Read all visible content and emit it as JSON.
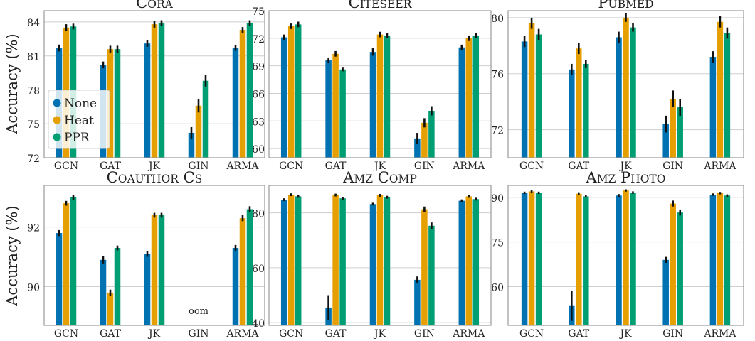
{
  "ylabel": "Accuracy (%)",
  "legend": {
    "entries": [
      {
        "label": "None",
        "color": "#0072B2"
      },
      {
        "label": "Heat",
        "color": "#E69F00"
      },
      {
        "label": "PPR",
        "color": "#009E73"
      }
    ]
  },
  "chart_data": [
    {
      "type": "bar",
      "title": "Cora",
      "categories": [
        "GCN",
        "GAT",
        "JK",
        "GIN",
        "ARMA"
      ],
      "ylim": [
        72,
        85
      ],
      "yticks": [
        72,
        75,
        78,
        81,
        84
      ],
      "series": [
        {
          "name": "None",
          "values": [
            81.7,
            80.2,
            82.1,
            74.2,
            81.7
          ],
          "errors": [
            0.3,
            0.3,
            0.3,
            0.5,
            0.25
          ]
        },
        {
          "name": "Heat",
          "values": [
            83.5,
            81.6,
            83.8,
            76.6,
            83.3
          ],
          "errors": [
            0.3,
            0.3,
            0.3,
            0.6,
            0.25
          ]
        },
        {
          "name": "PPR",
          "values": [
            83.6,
            81.6,
            83.9,
            78.8,
            83.9
          ],
          "errors": [
            0.25,
            0.3,
            0.25,
            0.5,
            0.25
          ]
        }
      ],
      "legend_placement": "left"
    },
    {
      "type": "bar",
      "title": "Citeseer",
      "categories": [
        "GCN",
        "GAT",
        "JK",
        "GIN",
        "ARMA"
      ],
      "ylim": [
        59,
        75
      ],
      "yticks": [
        60,
        63,
        66,
        69,
        72,
        75
      ],
      "series": [
        {
          "name": "None",
          "values": [
            72.1,
            69.6,
            70.5,
            61.1,
            71.0
          ],
          "errors": [
            0.3,
            0.3,
            0.4,
            0.6,
            0.3
          ]
        },
        {
          "name": "Heat",
          "values": [
            73.3,
            70.3,
            72.4,
            62.8,
            72.0
          ],
          "errors": [
            0.3,
            0.3,
            0.3,
            0.5,
            0.3
          ]
        },
        {
          "name": "PPR",
          "values": [
            73.5,
            68.6,
            72.3,
            64.1,
            72.3
          ],
          "errors": [
            0.3,
            0.2,
            0.3,
            0.5,
            0.3
          ]
        }
      ]
    },
    {
      "type": "bar",
      "title": "PubMed",
      "categories": [
        "GCN",
        "GAT",
        "JK",
        "GIN",
        "ARMA"
      ],
      "ylim": [
        70,
        80.5
      ],
      "yticks": [
        72,
        76,
        80
      ],
      "series": [
        {
          "name": "None",
          "values": [
            78.3,
            76.3,
            78.6,
            72.4,
            77.2
          ],
          "errors": [
            0.4,
            0.4,
            0.4,
            0.6,
            0.4
          ]
        },
        {
          "name": "Heat",
          "values": [
            79.6,
            77.8,
            80.0,
            74.2,
            79.7
          ],
          "errors": [
            0.4,
            0.4,
            0.3,
            0.6,
            0.4
          ]
        },
        {
          "name": "PPR",
          "values": [
            78.8,
            76.7,
            79.3,
            73.6,
            78.9
          ],
          "errors": [
            0.4,
            0.3,
            0.3,
            0.6,
            0.4
          ]
        }
      ]
    },
    {
      "type": "bar",
      "title": "Coauthor CS",
      "categories": [
        "GCN",
        "GAT",
        "JK",
        "GIN",
        "ARMA"
      ],
      "ylim": [
        88.7,
        93.4
      ],
      "yticks": [
        90,
        92
      ],
      "annotations": [
        {
          "category": "GIN",
          "text": "oom"
        }
      ],
      "series": [
        {
          "name": "None",
          "values": [
            91.8,
            90.9,
            91.1,
            null,
            91.3
          ],
          "errors": [
            0.1,
            0.12,
            0.1,
            null,
            0.1
          ]
        },
        {
          "name": "Heat",
          "values": [
            92.8,
            89.8,
            92.4,
            null,
            92.3
          ],
          "errors": [
            0.08,
            0.1,
            0.08,
            null,
            0.1
          ]
        },
        {
          "name": "PPR",
          "values": [
            93.0,
            91.3,
            92.4,
            null,
            92.6
          ],
          "errors": [
            0.08,
            0.08,
            0.08,
            null,
            0.1
          ]
        }
      ]
    },
    {
      "type": "bar",
      "title": "Amz Comp",
      "categories": [
        "GCN",
        "GAT",
        "JK",
        "GIN",
        "ARMA"
      ],
      "ylim": [
        39,
        90
      ],
      "yticks": [
        40,
        60,
        80
      ],
      "series": [
        {
          "name": "None",
          "values": [
            84.8,
            45.5,
            83.2,
            55.6,
            84.4
          ],
          "errors": [
            0.5,
            4.5,
            0.5,
            1.2,
            0.5
          ]
        },
        {
          "name": "Heat",
          "values": [
            86.6,
            86.5,
            86.4,
            81.3,
            86.0
          ],
          "errors": [
            0.5,
            0.5,
            0.5,
            1.0,
            0.5
          ]
        },
        {
          "name": "PPR",
          "values": [
            86.0,
            85.3,
            85.7,
            75.3,
            85.0
          ],
          "errors": [
            0.5,
            0.5,
            0.5,
            1.2,
            0.5
          ]
        }
      ]
    },
    {
      "type": "bar",
      "title": "Amz Photo",
      "categories": [
        "GCN",
        "GAT",
        "JK",
        "GIN",
        "ARMA"
      ],
      "ylim": [
        47,
        94
      ],
      "yticks": [
        60,
        75,
        90
      ],
      "series": [
        {
          "name": "None",
          "values": [
            91.5,
            53.5,
            90.6,
            69.0,
            90.9
          ],
          "errors": [
            0.4,
            5.0,
            0.5,
            1.0,
            0.4
          ]
        },
        {
          "name": "Heat",
          "values": [
            92.0,
            91.2,
            92.3,
            87.9,
            91.4
          ],
          "errors": [
            0.4,
            0.5,
            0.4,
            1.0,
            0.4
          ]
        },
        {
          "name": "PPR",
          "values": [
            91.5,
            90.3,
            91.6,
            84.9,
            90.6
          ],
          "errors": [
            0.4,
            0.4,
            0.4,
            1.0,
            0.4
          ]
        }
      ]
    }
  ]
}
